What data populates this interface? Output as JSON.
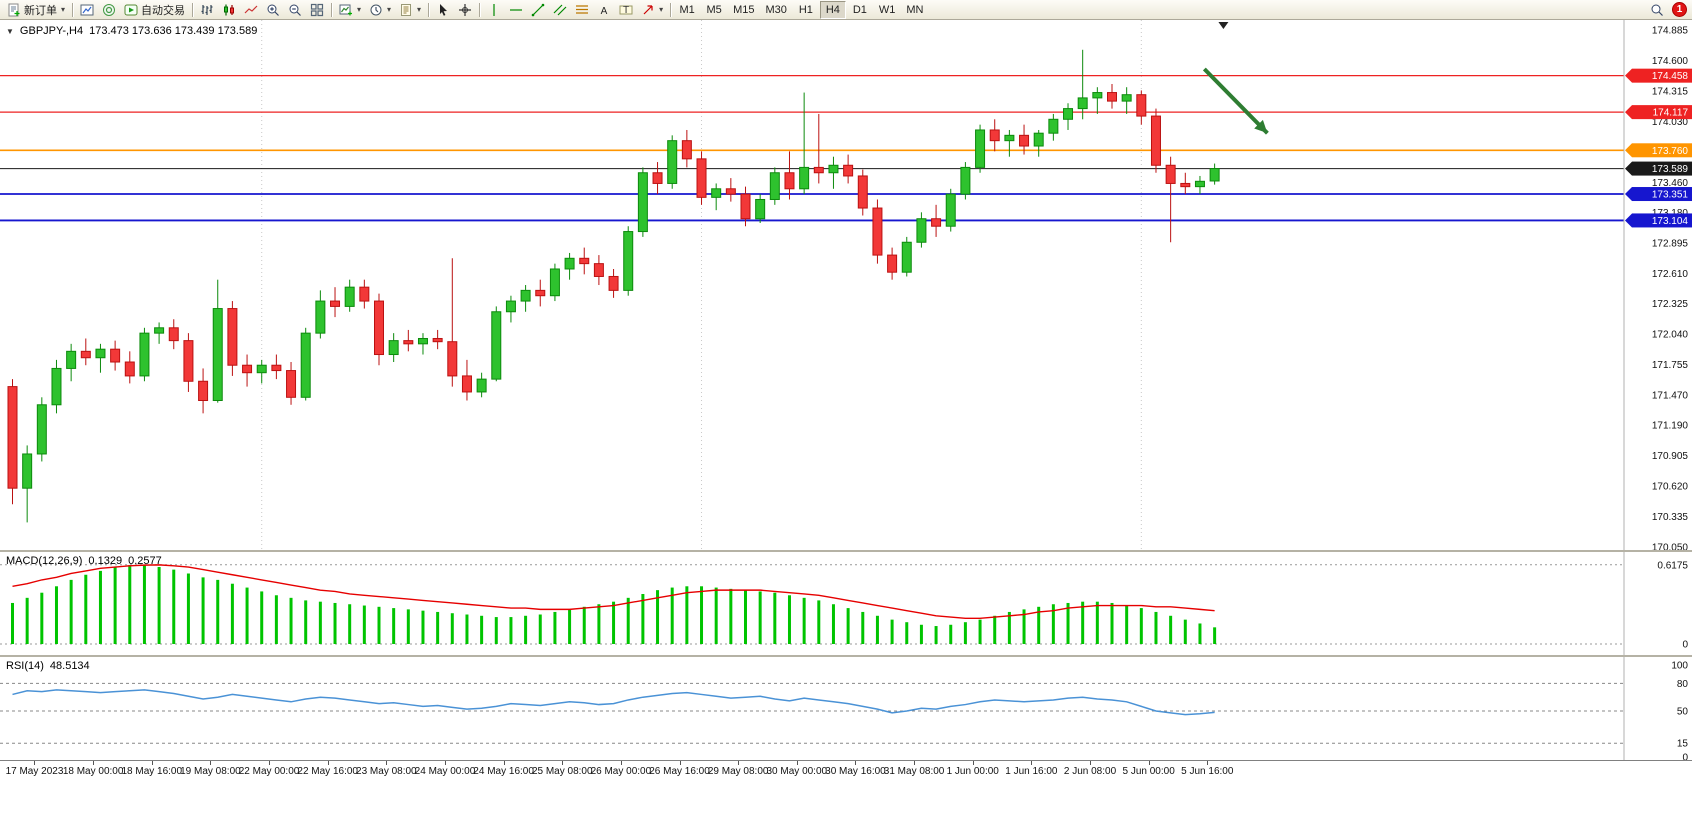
{
  "toolbar": {
    "new_order": "新订单",
    "auto_trading": "自动交易",
    "timeframes": [
      "M1",
      "M5",
      "M15",
      "M30",
      "H1",
      "H4",
      "D1",
      "W1",
      "MN"
    ],
    "active_timeframe": "H4",
    "notification_count": "1"
  },
  "chart": {
    "header": {
      "symbol": "GBPJPY-,H4",
      "ohlc": "173.473 173.636 173.439 173.589"
    },
    "scale": {
      "max": 174.885,
      "min": 170.05
    },
    "price_axis_labels": [
      "174.885",
      "174.600",
      "174.315",
      "174.030",
      "173.745",
      "173.460",
      "173.180",
      "172.895",
      "172.610",
      "172.325",
      "172.040",
      "171.755",
      "171.470",
      "171.190",
      "170.905",
      "170.620",
      "170.335",
      "170.050"
    ],
    "levels": [
      {
        "price": 174.458,
        "label": "174.458",
        "color": "#ee2222",
        "width": 1.2
      },
      {
        "price": 174.117,
        "label": "174.117",
        "color": "#ee2222",
        "width": 1.2
      },
      {
        "price": 173.76,
        "label": "173.760",
        "color": "#ff9500",
        "width": 1.6
      },
      {
        "price": 173.589,
        "label": "173.589",
        "color": "#1a1a1a",
        "width": 1
      },
      {
        "price": 173.351,
        "label": "173.351",
        "color": "#1616cf",
        "width": 1.8
      },
      {
        "price": 173.104,
        "label": "173.104",
        "color": "#1616cf",
        "width": 1.8
      }
    ],
    "colors": {
      "up": "#2ec22e",
      "up_stroke": "#0c8a0c",
      "down": "#f23838",
      "down_stroke": "#bb1111",
      "arrow": "#2e7d32"
    },
    "arrow": {
      "x1_bar": 81.3,
      "p1": 174.52,
      "x2_bar": 85.6,
      "p2": 173.92
    },
    "shift_marker_bar": 82.6
  },
  "indicators": {
    "macd": {
      "name": "MACD(12,26,9)",
      "value1": "0.1329",
      "value2": "0.2577",
      "axis": [
        "0.6175",
        "0"
      ],
      "scale_max": 0.655,
      "hist_color": "#00c400",
      "signal_color": "#e60000"
    },
    "rsi": {
      "name": "RSI(14)",
      "value": "48.5134",
      "axis": [
        {
          "v": 100,
          "t": "100"
        },
        {
          "v": 80,
          "t": "80"
        },
        {
          "v": 50,
          "t": "50"
        },
        {
          "v": 15,
          "t": "15"
        },
        {
          "v": 0,
          "t": "0"
        }
      ],
      "levels": [
        80,
        50,
        15
      ],
      "line_color": "#4a92d6"
    }
  },
  "chart_data": {
    "type": "candlestick",
    "symbol": "GBPJPY",
    "timeframe": "H4",
    "note": "OHLC per H4 bar, estimated from pixels",
    "candles_ohlc": [
      [
        171.55,
        171.62,
        170.45,
        170.6
      ],
      [
        170.6,
        171.0,
        170.28,
        170.92
      ],
      [
        170.92,
        171.45,
        170.85,
        171.38
      ],
      [
        171.38,
        171.8,
        171.3,
        171.72
      ],
      [
        171.72,
        171.95,
        171.6,
        171.88
      ],
      [
        171.88,
        172.0,
        171.75,
        171.82
      ],
      [
        171.82,
        171.95,
        171.68,
        171.9
      ],
      [
        171.9,
        171.98,
        171.7,
        171.78
      ],
      [
        171.78,
        171.88,
        171.58,
        171.65
      ],
      [
        171.65,
        172.1,
        171.6,
        172.05
      ],
      [
        172.05,
        172.15,
        171.95,
        172.1
      ],
      [
        172.1,
        172.18,
        171.9,
        171.98
      ],
      [
        171.98,
        172.05,
        171.5,
        171.6
      ],
      [
        171.6,
        171.72,
        171.3,
        171.42
      ],
      [
        171.42,
        172.55,
        171.4,
        172.28
      ],
      [
        172.28,
        172.35,
        171.65,
        171.75
      ],
      [
        171.75,
        171.85,
        171.55,
        171.68
      ],
      [
        171.68,
        171.8,
        171.58,
        171.75
      ],
      [
        171.75,
        171.85,
        171.62,
        171.7
      ],
      [
        171.7,
        171.78,
        171.38,
        171.45
      ],
      [
        171.45,
        172.1,
        171.42,
        172.05
      ],
      [
        172.05,
        172.45,
        172.0,
        172.35
      ],
      [
        172.35,
        172.48,
        172.2,
        172.3
      ],
      [
        172.3,
        172.55,
        172.25,
        172.48
      ],
      [
        172.48,
        172.55,
        172.28,
        172.35
      ],
      [
        172.35,
        172.42,
        171.75,
        171.85
      ],
      [
        171.85,
        172.05,
        171.78,
        171.98
      ],
      [
        171.98,
        172.08,
        171.88,
        171.95
      ],
      [
        171.95,
        172.05,
        171.85,
        172.0
      ],
      [
        172.0,
        172.08,
        171.9,
        171.97
      ],
      [
        171.97,
        172.75,
        171.55,
        171.65
      ],
      [
        171.65,
        171.8,
        171.42,
        171.5
      ],
      [
        171.5,
        171.68,
        171.45,
        171.62
      ],
      [
        171.62,
        172.3,
        171.6,
        172.25
      ],
      [
        172.25,
        172.4,
        172.15,
        172.35
      ],
      [
        172.35,
        172.5,
        172.25,
        172.45
      ],
      [
        172.45,
        172.55,
        172.3,
        172.4
      ],
      [
        172.4,
        172.7,
        172.35,
        172.65
      ],
      [
        172.65,
        172.8,
        172.55,
        172.75
      ],
      [
        172.75,
        172.85,
        172.6,
        172.7
      ],
      [
        172.7,
        172.78,
        172.5,
        172.58
      ],
      [
        172.58,
        172.65,
        172.38,
        172.45
      ],
      [
        172.45,
        173.05,
        172.4,
        173.0
      ],
      [
        173.0,
        173.6,
        172.95,
        173.55
      ],
      [
        173.55,
        173.65,
        173.35,
        173.45
      ],
      [
        173.45,
        173.9,
        173.4,
        173.85
      ],
      [
        173.85,
        173.95,
        173.6,
        173.68
      ],
      [
        173.68,
        173.75,
        173.25,
        173.32
      ],
      [
        173.32,
        173.45,
        173.2,
        173.4
      ],
      [
        173.4,
        173.5,
        173.28,
        173.35
      ],
      [
        173.35,
        173.42,
        173.05,
        173.12
      ],
      [
        173.12,
        173.35,
        173.08,
        173.3
      ],
      [
        173.3,
        173.6,
        173.25,
        173.55
      ],
      [
        173.55,
        173.75,
        173.3,
        173.4
      ],
      [
        173.4,
        174.3,
        173.35,
        173.6
      ],
      [
        173.6,
        174.1,
        173.45,
        173.55
      ],
      [
        173.55,
        173.7,
        173.4,
        173.62
      ],
      [
        173.62,
        173.72,
        173.45,
        173.52
      ],
      [
        173.52,
        173.58,
        173.15,
        173.22
      ],
      [
        173.22,
        173.3,
        172.7,
        172.78
      ],
      [
        172.78,
        172.85,
        172.55,
        172.62
      ],
      [
        172.62,
        172.95,
        172.58,
        172.9
      ],
      [
        172.9,
        173.18,
        172.85,
        173.12
      ],
      [
        173.12,
        173.25,
        172.95,
        173.05
      ],
      [
        173.05,
        173.4,
        173.0,
        173.35
      ],
      [
        173.35,
        173.65,
        173.3,
        173.6
      ],
      [
        173.6,
        174.0,
        173.55,
        173.95
      ],
      [
        173.95,
        174.05,
        173.75,
        173.85
      ],
      [
        173.85,
        173.95,
        173.7,
        173.9
      ],
      [
        173.9,
        174.0,
        173.72,
        173.8
      ],
      [
        173.8,
        173.95,
        173.7,
        173.92
      ],
      [
        173.92,
        174.1,
        173.85,
        174.05
      ],
      [
        174.05,
        174.2,
        173.95,
        174.15
      ],
      [
        174.15,
        174.7,
        174.05,
        174.25
      ],
      [
        174.25,
        174.35,
        174.1,
        174.3
      ],
      [
        174.3,
        174.38,
        174.15,
        174.22
      ],
      [
        174.22,
        174.35,
        174.1,
        174.28
      ],
      [
        174.28,
        174.32,
        174.0,
        174.08
      ],
      [
        174.08,
        174.15,
        173.55,
        173.62
      ],
      [
        173.62,
        173.7,
        172.9,
        173.45
      ],
      [
        173.45,
        173.55,
        173.35,
        173.42
      ],
      [
        173.42,
        173.52,
        173.35,
        173.47
      ],
      [
        173.473,
        173.636,
        173.439,
        173.589
      ]
    ],
    "macd_histogram": [
      0.32,
      0.36,
      0.4,
      0.45,
      0.5,
      0.54,
      0.57,
      0.6,
      0.615,
      0.617,
      0.6,
      0.58,
      0.55,
      0.52,
      0.5,
      0.47,
      0.44,
      0.41,
      0.38,
      0.36,
      0.34,
      0.33,
      0.32,
      0.31,
      0.3,
      0.29,
      0.28,
      0.27,
      0.26,
      0.25,
      0.24,
      0.23,
      0.22,
      0.21,
      0.21,
      0.22,
      0.23,
      0.25,
      0.27,
      0.29,
      0.31,
      0.33,
      0.36,
      0.39,
      0.42,
      0.44,
      0.45,
      0.45,
      0.44,
      0.43,
      0.42,
      0.41,
      0.4,
      0.38,
      0.36,
      0.34,
      0.31,
      0.28,
      0.25,
      0.22,
      0.19,
      0.17,
      0.15,
      0.14,
      0.15,
      0.17,
      0.19,
      0.22,
      0.25,
      0.27,
      0.29,
      0.31,
      0.32,
      0.33,
      0.33,
      0.32,
      0.3,
      0.28,
      0.25,
      0.22,
      0.19,
      0.16,
      0.13
    ],
    "macd_signal": [
      0.45,
      0.47,
      0.5,
      0.52,
      0.55,
      0.57,
      0.59,
      0.6,
      0.61,
      0.615,
      0.617,
      0.61,
      0.6,
      0.58,
      0.56,
      0.54,
      0.52,
      0.5,
      0.48,
      0.46,
      0.44,
      0.42,
      0.41,
      0.39,
      0.38,
      0.37,
      0.36,
      0.35,
      0.34,
      0.33,
      0.32,
      0.31,
      0.3,
      0.29,
      0.28,
      0.28,
      0.27,
      0.27,
      0.27,
      0.28,
      0.29,
      0.3,
      0.32,
      0.34,
      0.36,
      0.38,
      0.4,
      0.41,
      0.42,
      0.42,
      0.42,
      0.42,
      0.41,
      0.4,
      0.39,
      0.38,
      0.36,
      0.34,
      0.32,
      0.3,
      0.28,
      0.26,
      0.24,
      0.22,
      0.21,
      0.2,
      0.2,
      0.21,
      0.22,
      0.23,
      0.25,
      0.26,
      0.28,
      0.29,
      0.3,
      0.3,
      0.3,
      0.3,
      0.29,
      0.29,
      0.28,
      0.27,
      0.26
    ],
    "rsi": [
      68,
      72,
      71,
      73,
      72,
      71,
      70,
      71,
      72,
      73,
      71,
      69,
      66,
      63,
      65,
      68,
      66,
      64,
      62,
      60,
      63,
      65,
      64,
      62,
      60,
      58,
      59,
      57,
      55,
      56,
      54,
      52,
      53,
      55,
      58,
      57,
      56,
      58,
      60,
      59,
      57,
      58,
      62,
      65,
      67,
      69,
      70,
      68,
      66,
      64,
      65,
      66,
      63,
      61,
      64,
      62,
      60,
      58,
      55,
      52,
      48,
      50,
      53,
      52,
      55,
      57,
      60,
      62,
      61,
      60,
      61,
      62,
      64,
      65,
      63,
      62,
      60,
      55,
      50,
      48,
      46,
      47,
      48.5
    ],
    "time_labels": [
      "17 May 2023",
      "18 May 00:00",
      "18 May 16:00",
      "19 May 08:00",
      "22 May 00:00",
      "22 May 16:00",
      "23 May 08:00",
      "24 May 00:00",
      "24 May 16:00",
      "25 May 08:00",
      "26 May 00:00",
      "26 May 16:00",
      "29 May 08:00",
      "30 May 00:00",
      "30 May 16:00",
      "31 May 08:00",
      "1 Jun 00:00",
      "1 Jun 16:00",
      "2 Jun 08:00",
      "5 Jun 00:00",
      "5 Jun 16:00"
    ],
    "time_label_first_bar": 1.5,
    "time_label_step_bars": 4,
    "period_separator_bars": [
      17,
      47,
      77
    ]
  }
}
